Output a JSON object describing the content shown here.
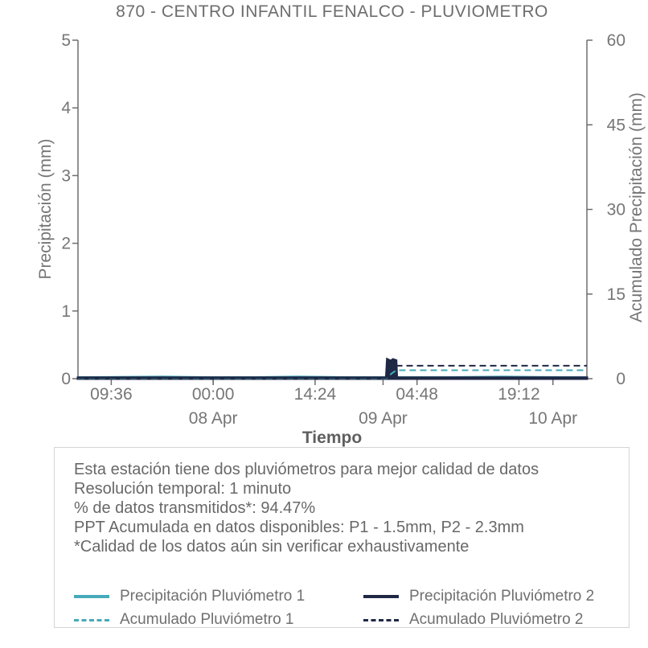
{
  "title": "870 - CENTRO INFANTIL FENALCO - PLUVIOMETRO",
  "chart_data": {
    "type": "line",
    "title": "870 - CENTRO INFANTIL FENALCO - PLUVIOMETRO",
    "xlabel": "Tiempo",
    "ylabel_left": "Precipitación (mm)",
    "ylabel_right": "Acumulado Precipitación (mm)",
    "ylim_left": [
      0,
      5
    ],
    "ylim_right": [
      0,
      60
    ],
    "grid": false,
    "y_ticks_left": [
      "0",
      "1",
      "2",
      "3",
      "4",
      "5"
    ],
    "y_ticks_right": [
      "0",
      "15",
      "30",
      "45",
      "60"
    ],
    "x_axis": {
      "span_hours": 71.9,
      "time_ticks": [
        {
          "h": 4.7,
          "label": "09:36"
        },
        {
          "h": 19.1,
          "label": "00:00"
        },
        {
          "h": 33.5,
          "label": "14:24"
        },
        {
          "h": 47.9,
          "label": "04:48"
        },
        {
          "h": 62.3,
          "label": "19:12"
        }
      ],
      "date_ticks": [
        {
          "h": 19.1,
          "label": "08 Apr"
        },
        {
          "h": 43.1,
          "label": "09 Apr"
        },
        {
          "h": 67.1,
          "label": "10 Apr"
        }
      ]
    },
    "series": [
      {
        "name": "Precipitación Pluviómetro 1",
        "axis": "left",
        "style": "solid",
        "color": "#46aab9",
        "width": 2.5,
        "fill": false,
        "points": [
          [
            0,
            0.02
          ],
          [
            12,
            0.03
          ],
          [
            18,
            0.02
          ],
          [
            25,
            0.02
          ],
          [
            31,
            0.03
          ],
          [
            38,
            0.02
          ],
          [
            43.5,
            0.02
          ],
          [
            43.8,
            0.1
          ],
          [
            44.0,
            0.17
          ],
          [
            44.3,
            0.12
          ],
          [
            44.6,
            0.16
          ],
          [
            44.9,
            0.08
          ],
          [
            45.1,
            0.02
          ],
          [
            52,
            0.02
          ],
          [
            60,
            0.03
          ],
          [
            68,
            0.02
          ],
          [
            71.9,
            0.02
          ]
        ]
      },
      {
        "name": "Precipitación Pluviómetro 2",
        "axis": "left",
        "style": "solid",
        "color": "#1f2845",
        "width": 3,
        "fill": true,
        "points": [
          [
            0,
            0.015
          ],
          [
            43.55,
            0.015
          ],
          [
            43.7,
            0.285
          ],
          [
            44.2,
            0.26
          ],
          [
            44.5,
            0.285
          ],
          [
            44.95,
            0.27
          ],
          [
            45.05,
            0.015
          ],
          [
            71.9,
            0.015
          ]
        ]
      },
      {
        "name": "Acumulado Pluviómetro 1",
        "axis": "right",
        "style": "dashed",
        "color": "#46aab9",
        "width": 2,
        "fill": false,
        "points": [
          [
            0,
            0.08
          ],
          [
            43.6,
            0.08
          ],
          [
            44.0,
            0.6
          ],
          [
            44.5,
            1.1
          ],
          [
            45.0,
            1.5
          ],
          [
            71.9,
            1.5
          ]
        ]
      },
      {
        "name": "Acumulado Pluviómetro 2",
        "axis": "right",
        "style": "dashed",
        "color": "#1f2845",
        "width": 2,
        "fill": false,
        "points": [
          [
            0,
            0.15
          ],
          [
            43.55,
            0.15
          ],
          [
            44.0,
            1.2
          ],
          [
            44.6,
            2.0
          ],
          [
            44.9,
            2.3
          ],
          [
            71.9,
            2.3
          ]
        ]
      }
    ],
    "annotations": {
      "rain_event": "Single short rain burst just after 09 Apr 00:00",
      "totals": "Acumulado P1 = 1.5 mm, Acumulado P2 = 2.3 mm"
    }
  },
  "info_box": {
    "lines": [
      "Esta estación tiene dos pluviómetros para mejor calidad de datos",
      "Resolución temporal: 1 minuto",
      "% de datos transmitidos*: 94.47%",
      "PPT Acumulada en datos disponibles: P1 - 1.5mm, P2 - 2.3mm",
      "*Calidad de los datos aún sin verificar exhaustivamente"
    ]
  },
  "legend": {
    "items": [
      {
        "label": "Precipitación Pluviómetro 1",
        "color": "#46aab9",
        "style": "solid"
      },
      {
        "label": "Precipitación Pluviómetro 2",
        "color": "#1f2845",
        "style": "solid"
      },
      {
        "label": "Acumulado Pluviómetro 1",
        "color": "#46aab9",
        "style": "dashed"
      },
      {
        "label": "Acumulado Pluviómetro 2",
        "color": "#1f2845",
        "style": "dashed"
      }
    ]
  },
  "colors": {
    "teal": "#46aab9",
    "navy": "#1f2845",
    "text_gray": "#767676",
    "axis_gray": "#6e6e6e",
    "box_border": "#d4d4d4"
  }
}
